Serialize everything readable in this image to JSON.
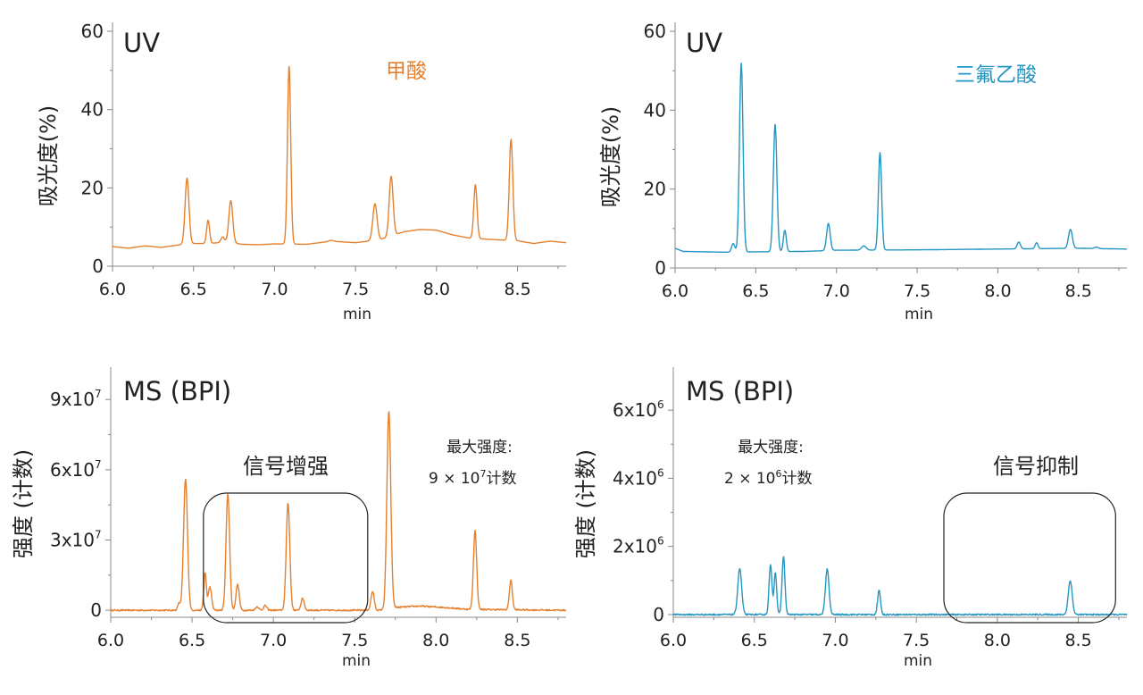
{
  "chart_data": [
    {
      "panel": "top-left",
      "type": "line",
      "title": "UV",
      "annotation": "甲酸",
      "annotation_color": "#e5812e",
      "color": "#e5812e",
      "xlabel": "min",
      "ylabel": "吸光度(%)",
      "xlim": [
        6.0,
        8.8
      ],
      "ylim": [
        0,
        60
      ],
      "xticks": [
        "6.0",
        "6.5",
        "7.0",
        "7.5",
        "8.0",
        "8.5"
      ],
      "yticks": [
        {
          "v": 0,
          "t": "0"
        },
        {
          "v": 20,
          "t": "20"
        },
        {
          "v": 40,
          "t": "40"
        },
        {
          "v": 60,
          "t": "60"
        }
      ],
      "baseline": [
        [
          6.0,
          5.0
        ],
        [
          6.1,
          4.6
        ],
        [
          6.2,
          5.2
        ],
        [
          6.3,
          4.8
        ],
        [
          6.4,
          5.4
        ],
        [
          6.5,
          5.8
        ],
        [
          6.6,
          5.8
        ],
        [
          6.7,
          6.2
        ],
        [
          6.8,
          5.6
        ],
        [
          6.9,
          5.5
        ],
        [
          7.0,
          5.7
        ],
        [
          7.2,
          5.6
        ],
        [
          7.35,
          6.4
        ],
        [
          7.5,
          6.0
        ],
        [
          7.65,
          6.8
        ],
        [
          7.8,
          8.8
        ],
        [
          7.9,
          9.4
        ],
        [
          8.0,
          9.2
        ],
        [
          8.1,
          8.0
        ],
        [
          8.2,
          7.2
        ],
        [
          8.35,
          6.8
        ],
        [
          8.5,
          6.5
        ],
        [
          8.6,
          5.8
        ],
        [
          8.7,
          6.4
        ],
        [
          8.8,
          6.0
        ]
      ],
      "peaks": [
        [
          6.46,
          22.5,
          0.012
        ],
        [
          6.59,
          11.8,
          0.009
        ],
        [
          6.68,
          7.5,
          0.01
        ],
        [
          6.73,
          16.8,
          0.012
        ],
        [
          7.09,
          51.3,
          0.01
        ],
        [
          7.35,
          6.6,
          0.012
        ],
        [
          7.62,
          16.0,
          0.013
        ],
        [
          7.72,
          23.0,
          0.012
        ],
        [
          8.24,
          20.8,
          0.01
        ],
        [
          8.46,
          32.5,
          0.011
        ]
      ]
    },
    {
      "panel": "top-right",
      "type": "line",
      "title": "UV",
      "annotation": "三氟乙酸",
      "annotation_color": "#2496c2",
      "color": "#2496c2",
      "xlabel": "min",
      "ylabel": "吸光度(%)",
      "xlim": [
        6.0,
        8.8
      ],
      "ylim": [
        0,
        60
      ],
      "xticks": [
        "6.0",
        "6.5",
        "7.0",
        "7.5",
        "8.0",
        "8.5"
      ],
      "yticks": [
        {
          "v": 0,
          "t": "0"
        },
        {
          "v": 20,
          "t": "20"
        },
        {
          "v": 40,
          "t": "40"
        },
        {
          "v": 60,
          "t": "60"
        }
      ],
      "baseline": [
        [
          6.0,
          5.0
        ],
        [
          6.05,
          4.2
        ],
        [
          6.3,
          4.0
        ],
        [
          6.5,
          4.1
        ],
        [
          6.8,
          4.2
        ],
        [
          7.0,
          4.5
        ],
        [
          7.5,
          4.6
        ],
        [
          8.0,
          4.8
        ],
        [
          8.5,
          5.0
        ],
        [
          8.8,
          4.8
        ]
      ],
      "peaks": [
        [
          6.36,
          6.2,
          0.01
        ],
        [
          6.41,
          52.0,
          0.011
        ],
        [
          6.62,
          36.5,
          0.011
        ],
        [
          6.68,
          9.6,
          0.009
        ],
        [
          6.95,
          11.3,
          0.011
        ],
        [
          7.17,
          5.6,
          0.014
        ],
        [
          7.27,
          29.3,
          0.01
        ],
        [
          8.13,
          6.6,
          0.01
        ],
        [
          8.24,
          6.4,
          0.009
        ],
        [
          8.45,
          9.8,
          0.012
        ],
        [
          8.61,
          5.3,
          0.012
        ]
      ]
    },
    {
      "panel": "bottom-left",
      "type": "line",
      "title": "MS (BPI)",
      "color": "#e5812e",
      "xlabel": "min",
      "ylabel": "强度 (计数)",
      "xlim": [
        6.0,
        8.8
      ],
      "ylim": [
        -3000000.0,
        100000000.0
      ],
      "xticks": [
        "6.0",
        "6.5",
        "7.0",
        "7.5",
        "8.0",
        "8.5"
      ],
      "yticks": [
        {
          "v": 0,
          "t": "0"
        },
        {
          "v": 30000000.0,
          "t": "3x10",
          "e": "7"
        },
        {
          "v": 60000000.0,
          "t": "6x10",
          "e": "7"
        },
        {
          "v": 90000000.0,
          "t": "9x10",
          "e": "7"
        }
      ],
      "baseline": [
        [
          6.0,
          0
        ],
        [
          7.65,
          0
        ],
        [
          7.75,
          1200000.0
        ],
        [
          7.9,
          1800000.0
        ],
        [
          8.05,
          1200000.0
        ],
        [
          8.2,
          400000.0
        ],
        [
          8.8,
          0
        ]
      ],
      "peaks": [
        [
          6.42,
          3000000.0,
          0.008
        ],
        [
          6.46,
          56000000.0,
          0.012
        ],
        [
          6.58,
          16000000.0,
          0.008
        ],
        [
          6.61,
          10000000.0,
          0.01
        ],
        [
          6.72,
          50000000.0,
          0.011
        ],
        [
          6.78,
          11000000.0,
          0.01
        ],
        [
          6.9,
          1500000.0,
          0.01
        ],
        [
          6.95,
          2000000.0,
          0.01
        ],
        [
          7.09,
          46000000.0,
          0.011
        ],
        [
          7.18,
          5000000.0,
          0.01
        ],
        [
          7.61,
          8000000.0,
          0.01
        ],
        [
          7.71,
          85000000.0,
          0.012
        ],
        [
          8.24,
          34000000.0,
          0.01
        ],
        [
          8.46,
          13000000.0,
          0.009
        ]
      ],
      "callout_box": {
        "label": "信号增强",
        "x0": 6.57,
        "x1": 7.58
      },
      "note_lines": [
        "最大强度:",
        "9 × 10",
        "7",
        "计数"
      ]
    },
    {
      "panel": "bottom-right",
      "type": "line",
      "title": "MS (BPI)",
      "color": "#2496c2",
      "xlabel": "min",
      "ylabel": "强度 (计数)",
      "xlim": [
        6.0,
        8.8
      ],
      "ylim": [
        -80000.0,
        7000000.0
      ],
      "xticks": [
        "6.0",
        "6.5",
        "7.0",
        "7.5",
        "8.0",
        "8.5"
      ],
      "yticks": [
        {
          "v": 0,
          "t": "0"
        },
        {
          "v": 2000000.0,
          "t": "2x10",
          "e": "6"
        },
        {
          "v": 4000000.0,
          "t": "4x10",
          "e": "6"
        },
        {
          "v": 6000000.0,
          "t": "6x10",
          "e": "6"
        }
      ],
      "baseline": [
        [
          6.0,
          0
        ],
        [
          8.8,
          0
        ]
      ],
      "peaks": [
        [
          6.41,
          1350000.0,
          0.012
        ],
        [
          6.6,
          1450000.0,
          0.009
        ],
        [
          6.63,
          1250000.0,
          0.008
        ],
        [
          6.68,
          1700000.0,
          0.009
        ],
        [
          6.95,
          1350000.0,
          0.011
        ],
        [
          7.27,
          700000.0,
          0.009
        ],
        [
          8.45,
          1000000.0,
          0.012
        ]
      ],
      "callout_box": {
        "label": "信号抑制",
        "x0": 7.67,
        "x1": 8.73
      },
      "note_lines": [
        "最大强度:",
        "2 × 10",
        "6",
        "计数"
      ]
    }
  ]
}
